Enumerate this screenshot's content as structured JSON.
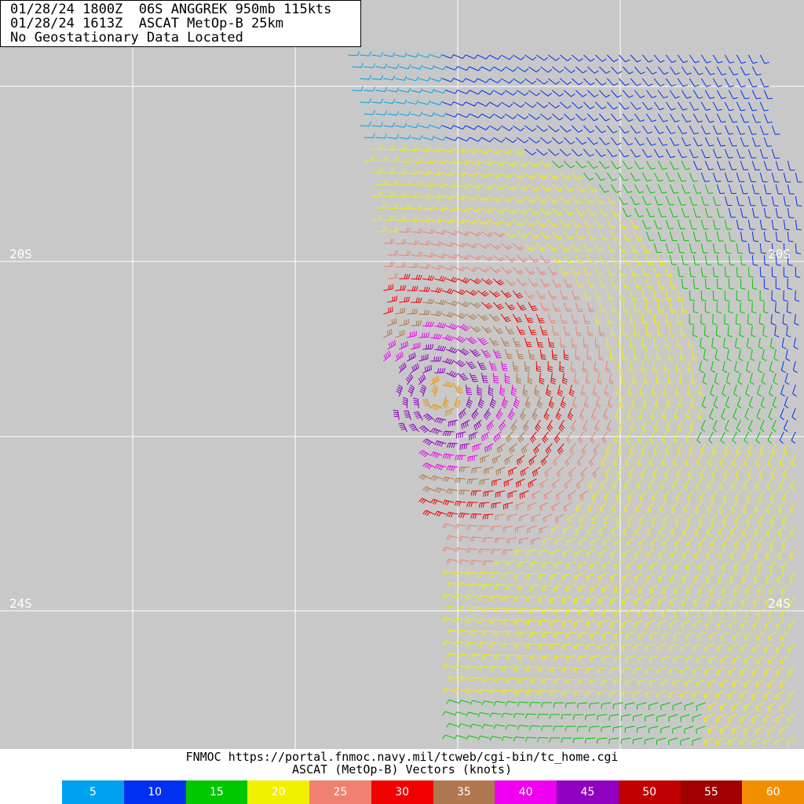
{
  "header": {
    "line1": "01/28/24 1800Z  06S ANGGREK 950mb 115kts",
    "line2": "01/28/24 1613Z  ASCAT MetOp-B 25km",
    "line3": "No Geostationary Data Located"
  },
  "map": {
    "lat_labels": [
      "20S",
      "24S"
    ],
    "east_lat_labels": [
      "20S",
      "24S"
    ],
    "background_color": "#c8c8c8",
    "grid_color": "#ffffff",
    "storm_name": "ANGGREK",
    "storm_id": "06S"
  },
  "footer": {
    "source": "FNMOC https://portal.fnmoc.navy.mil/tcweb/cgi-bin/tc_home.cgi",
    "title": "ASCAT (MetOp-B) Vectors (knots)"
  },
  "legend": [
    {
      "label": "5",
      "color": "#00a0f0"
    },
    {
      "label": "10",
      "color": "#0030f0"
    },
    {
      "label": "15",
      "color": "#00c800"
    },
    {
      "label": "20",
      "color": "#f0f000"
    },
    {
      "label": "25",
      "color": "#f08070"
    },
    {
      "label": "30",
      "color": "#f00000"
    },
    {
      "label": "35",
      "color": "#b07850"
    },
    {
      "label": "40",
      "color": "#f000f0"
    },
    {
      "label": "45",
      "color": "#9000c0"
    },
    {
      "label": "50",
      "color": "#c00000"
    },
    {
      "label": "55",
      "color": "#a00000"
    },
    {
      "label": "60",
      "color": "#f09000"
    }
  ]
}
